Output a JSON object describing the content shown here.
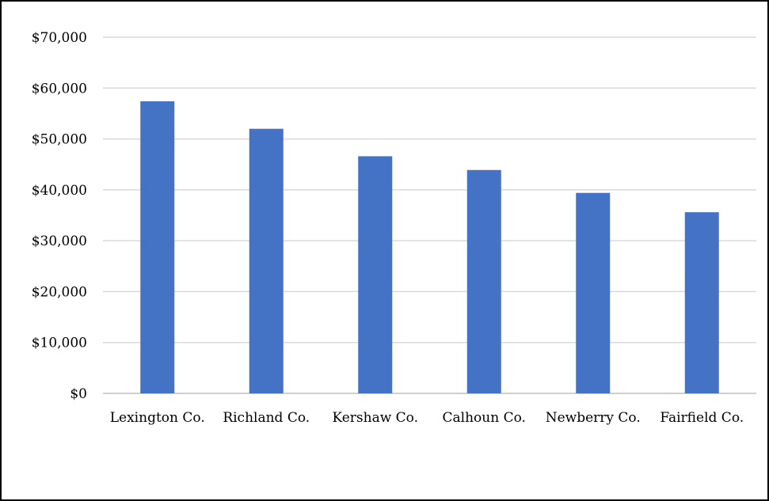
{
  "chart_data": {
    "type": "bar",
    "title": "",
    "xlabel": "",
    "ylabel": "",
    "categories": [
      "Lexington Co.",
      "Richland Co.",
      "Kershaw Co.",
      "Calhoun Co.",
      "Newberry Co.",
      "Fairfield Co."
    ],
    "values": [
      57400,
      52000,
      46600,
      43900,
      39400,
      35600
    ],
    "ylim": [
      0,
      70000
    ],
    "y_ticks": [
      0,
      10000,
      20000,
      30000,
      40000,
      50000,
      60000,
      70000
    ],
    "y_tick_labels": [
      "$0",
      "$10,000",
      "$20,000",
      "$30,000",
      "$40,000",
      "$50,000",
      "$60,000",
      "$70,000"
    ],
    "grid": true,
    "legend": "none",
    "colors": {
      "bar": "#4472C4",
      "grid": "#D9D9D9",
      "axis": "#BFBFBF",
      "text": "#000000",
      "border": "#000000"
    }
  }
}
